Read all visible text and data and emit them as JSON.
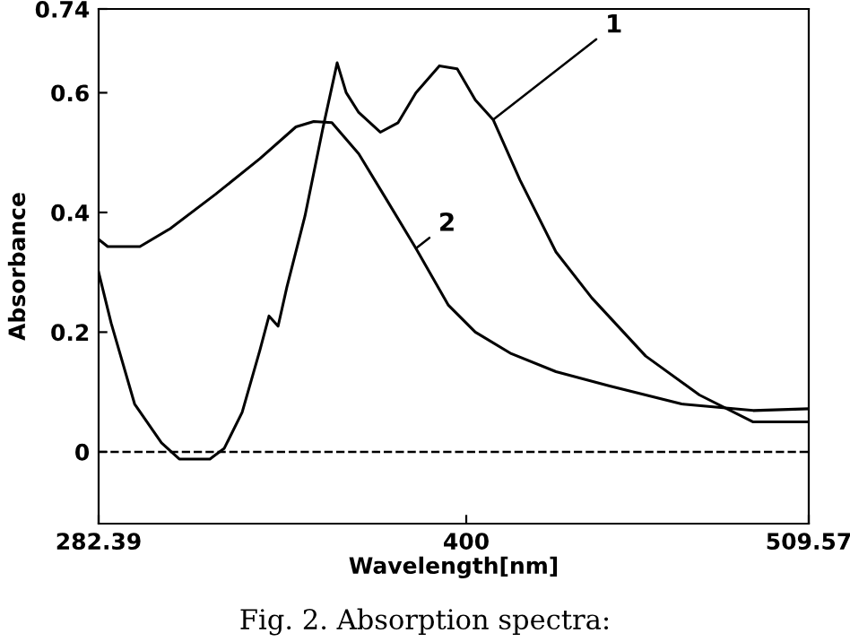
{
  "chart_data": {
    "type": "line",
    "xlabel": "Wavelength[nm]",
    "ylabel": "Absorbance",
    "annotations": [
      "Fig. 2. Absorption spectra:"
    ],
    "xlim": [
      282.39,
      509.57
    ],
    "xticks": [
      282.39,
      400,
      509.57
    ],
    "ylim": [
      -0.12,
      0.74
    ],
    "yticks": [
      0,
      0.2,
      0.4,
      0.6,
      0.74
    ],
    "grid": false,
    "legend": false,
    "marker": "none",
    "line_style": "solid",
    "ref_lines": [
      {
        "axis": "y",
        "value": 0,
        "line_style": "dashed",
        "color": "#000000"
      }
    ],
    "series": [
      {
        "name": "1",
        "color": "#000000",
        "x": [
          282.4,
          286.4,
          293.9,
          302.5,
          308.2,
          318.0,
          322.6,
          328.3,
          334.0,
          336.9,
          339.8,
          342.6,
          348.4,
          354.1,
          358.7,
          361.6,
          365.6,
          372.5,
          378.2,
          383.9,
          391.4,
          397.1,
          402.9,
          408.6,
          417.2,
          428.7,
          440.2,
          457.4,
          474.6,
          491.8,
          509.57
        ],
        "values": [
          0.3,
          0.215,
          0.08,
          0.015,
          -0.012,
          -0.012,
          0.006,
          0.066,
          0.17,
          0.227,
          0.21,
          0.275,
          0.394,
          0.54,
          0.65,
          0.6,
          0.567,
          0.534,
          0.55,
          0.6,
          0.645,
          0.64,
          0.588,
          0.555,
          0.454,
          0.334,
          0.257,
          0.16,
          0.095,
          0.05,
          0.05
        ]
      },
      {
        "name": "2",
        "color": "#000000",
        "x": [
          282.39,
          285.3,
          295.6,
          305.3,
          319.7,
          334.0,
          345.5,
          351.2,
          357.0,
          365.6,
          374.2,
          383.9,
          394.3,
          402.9,
          414.4,
          428.7,
          445.9,
          468.9,
          491.8,
          509.57
        ],
        "values": [
          0.355,
          0.343,
          0.343,
          0.373,
          0.43,
          0.49,
          0.543,
          0.552,
          0.55,
          0.498,
          0.424,
          0.34,
          0.245,
          0.2,
          0.164,
          0.134,
          0.11,
          0.08,
          0.069,
          0.072
        ]
      }
    ]
  }
}
